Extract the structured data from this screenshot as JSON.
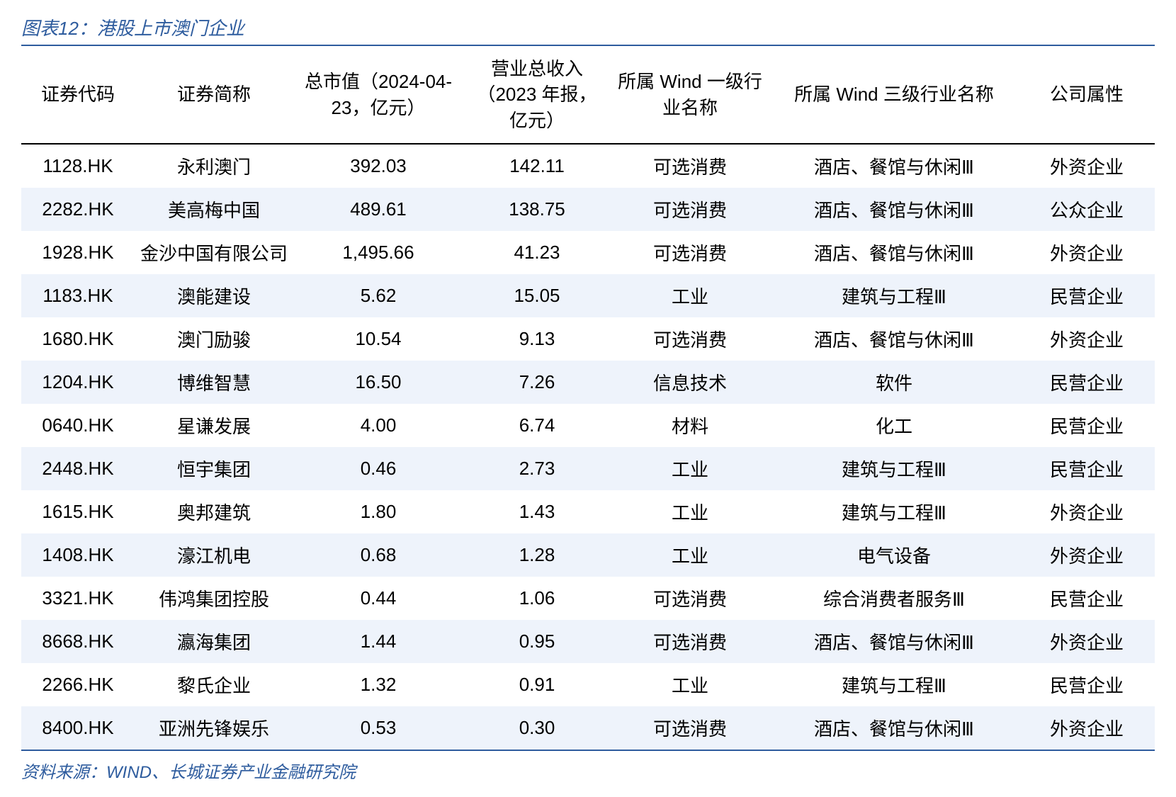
{
  "title": "图表12：港股上市澳门企业",
  "source": "资料来源：WIND、长城证券产业金融研究院",
  "colors": {
    "title_color": "#2e5c9e",
    "border_color": "#2e5c9e",
    "header_border": "#000000",
    "row_even_bg": "#eef3fb",
    "row_odd_bg": "#ffffff",
    "text_color": "#000000"
  },
  "table": {
    "type": "table",
    "columns": [
      "证券代码",
      "证券简称",
      "总市值（2024-04-23，亿元）",
      "营业总收入（2023 年报，亿元）",
      "所属 Wind 一级行业名称",
      "所属 Wind 三级行业名称",
      "公司属性"
    ],
    "rows": [
      [
        "1128.HK",
        "永利澳门",
        "392.03",
        "142.11",
        "可选消费",
        "酒店、餐馆与休闲Ⅲ",
        "外资企业"
      ],
      [
        "2282.HK",
        "美高梅中国",
        "489.61",
        "138.75",
        "可选消费",
        "酒店、餐馆与休闲Ⅲ",
        "公众企业"
      ],
      [
        "1928.HK",
        "金沙中国有限公司",
        "1,495.66",
        "41.23",
        "可选消费",
        "酒店、餐馆与休闲Ⅲ",
        "外资企业"
      ],
      [
        "1183.HK",
        "澳能建设",
        "5.62",
        "15.05",
        "工业",
        "建筑与工程Ⅲ",
        "民营企业"
      ],
      [
        "1680.HK",
        "澳门励骏",
        "10.54",
        "9.13",
        "可选消费",
        "酒店、餐馆与休闲Ⅲ",
        "外资企业"
      ],
      [
        "1204.HK",
        "博维智慧",
        "16.50",
        "7.26",
        "信息技术",
        "软件",
        "民营企业"
      ],
      [
        "0640.HK",
        "星谦发展",
        "4.00",
        "6.74",
        "材料",
        "化工",
        "民营企业"
      ],
      [
        "2448.HK",
        "恒宇集团",
        "0.46",
        "2.73",
        "工业",
        "建筑与工程Ⅲ",
        "民营企业"
      ],
      [
        "1615.HK",
        "奥邦建筑",
        "1.80",
        "1.43",
        "工业",
        "建筑与工程Ⅲ",
        "外资企业"
      ],
      [
        "1408.HK",
        "濠江机电",
        "0.68",
        "1.28",
        "工业",
        "电气设备",
        "外资企业"
      ],
      [
        "3321.HK",
        "伟鸿集团控股",
        "0.44",
        "1.06",
        "可选消费",
        "综合消费者服务Ⅲ",
        "民营企业"
      ],
      [
        "8668.HK",
        "瀛海集团",
        "1.44",
        "0.95",
        "可选消费",
        "酒店、餐馆与休闲Ⅲ",
        "外资企业"
      ],
      [
        "2266.HK",
        "黎氏企业",
        "1.32",
        "0.91",
        "工业",
        "建筑与工程Ⅲ",
        "民营企业"
      ],
      [
        "8400.HK",
        "亚洲先锋娱乐",
        "0.53",
        "0.30",
        "可选消费",
        "酒店、餐馆与休闲Ⅲ",
        "外资企业"
      ]
    ]
  }
}
